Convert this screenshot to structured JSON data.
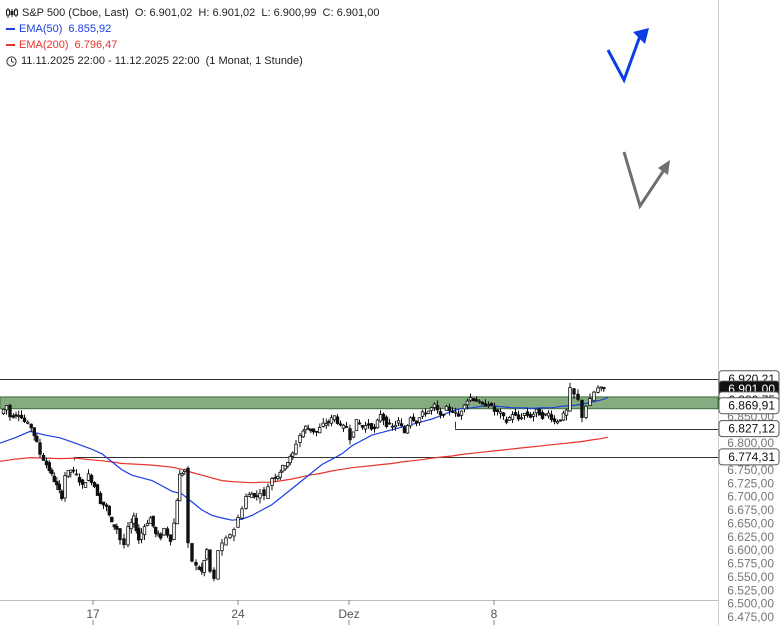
{
  "legend": {
    "title": "S&P 500 (Cboe, Last)",
    "ohlc": "O: 6.901,02  H: 6.901,02  L: 6.900,99  C: 6.901,00",
    "ema50_label": "EMA(50)",
    "ema50_value": "6.855,92",
    "ema200_label": "EMA(200)",
    "ema200_value": "6.796,47",
    "range": "11.11.2025 22:00 - 11.12.2025 22:00",
    "interval": "(1 Monat, 1 Stunde)",
    "icon": "candlestick-icon",
    "clock_icon": "clock-icon"
  },
  "colors": {
    "ema50": "#1a3fe0",
    "ema200": "#e8342a",
    "zone": "#6e9e6a",
    "up_arrow": "#0a3fe8",
    "down_arrow": "#707070"
  },
  "chart_data": {
    "type": "candlestick",
    "y_min": 6475,
    "y_max": 6937,
    "y_ticks": [
      6475,
      6500,
      6525,
      6550,
      6575,
      6600,
      6625,
      6650,
      6675,
      6700,
      6725,
      6750,
      6775,
      6800,
      6825,
      6850,
      6875,
      6900,
      6925
    ],
    "y_tick_labels": [
      "6.475,00",
      "6.500,00",
      "6.525,00",
      "6.550,00",
      "6.575,00",
      "6.600,00",
      "6.625,00",
      "6.650,00",
      "6.675,00",
      "6.700,00",
      "6.725,00",
      "6.750,00",
      "6.775,00",
      "6.800,00",
      "6.825,00",
      "6.850,00",
      "6.875,00",
      "6.900,00",
      "6.925,00"
    ],
    "x_ticks": [
      {
        "pos": 93,
        "label": "17"
      },
      {
        "pos": 238,
        "label": "24"
      },
      {
        "pos": 349,
        "label": "Dez"
      },
      {
        "pos": 494,
        "label": "8"
      }
    ],
    "levels": [
      {
        "value": 6920.21,
        "label": "6.920,21"
      },
      {
        "value": 6827.12,
        "label": "6.827,12"
      },
      {
        "value": 6774.31,
        "label": "6.774,31"
      }
    ],
    "current": {
      "value": 6901.0,
      "label": "6.901,00"
    },
    "zone": {
      "top": 6880.75,
      "bottom": 6869.91,
      "top_label": "6.880,75",
      "bottom_label": "6.869,91"
    },
    "close_path": [
      [
        2,
        6855
      ],
      [
        8,
        6870
      ],
      [
        12,
        6850
      ],
      [
        20,
        6855
      ],
      [
        26,
        6840
      ],
      [
        33,
        6830
      ],
      [
        38,
        6800
      ],
      [
        42,
        6780
      ],
      [
        48,
        6760
      ],
      [
        53,
        6740
      ],
      [
        58,
        6720
      ],
      [
        63,
        6700
      ],
      [
        67,
        6740
      ],
      [
        72,
        6750
      ],
      [
        78,
        6740
      ],
      [
        84,
        6720
      ],
      [
        90,
        6740
      ],
      [
        96,
        6720
      ],
      [
        102,
        6690
      ],
      [
        108,
        6680
      ],
      [
        113,
        6650
      ],
      [
        118,
        6640
      ],
      [
        122,
        6620
      ],
      [
        126,
        6610
      ],
      [
        130,
        6640
      ],
      [
        135,
        6660
      ],
      [
        140,
        6620
      ],
      [
        146,
        6645
      ],
      [
        152,
        6660
      ],
      [
        157,
        6630
      ],
      [
        162,
        6625
      ],
      [
        166,
        6640
      ],
      [
        172,
        6620
      ],
      [
        176,
        6650
      ],
      [
        181,
        6740
      ],
      [
        186,
        6750
      ],
      [
        190,
        6610
      ],
      [
        194,
        6580
      ],
      [
        198,
        6570
      ],
      [
        203,
        6560
      ],
      [
        208,
        6600
      ],
      [
        212,
        6560
      ],
      [
        216,
        6545
      ],
      [
        220,
        6600
      ],
      [
        224,
        6610
      ],
      [
        228,
        6620
      ],
      [
        232,
        6630
      ],
      [
        236,
        6640
      ],
      [
        240,
        6660
      ],
      [
        244,
        6680
      ],
      [
        248,
        6700
      ],
      [
        253,
        6705
      ],
      [
        258,
        6700
      ],
      [
        262,
        6710
      ],
      [
        266,
        6700
      ],
      [
        270,
        6720
      ],
      [
        274,
        6735
      ],
      [
        279,
        6740
      ],
      [
        284,
        6755
      ],
      [
        289,
        6765
      ],
      [
        294,
        6780
      ],
      [
        298,
        6800
      ],
      [
        302,
        6815
      ],
      [
        307,
        6830
      ],
      [
        312,
        6825
      ],
      [
        318,
        6820
      ],
      [
        325,
        6835
      ],
      [
        330,
        6840
      ],
      [
        336,
        6850
      ],
      [
        342,
        6830
      ],
      [
        348,
        6830
      ],
      [
        352,
        6810
      ],
      [
        358,
        6840
      ],
      [
        364,
        6830
      ],
      [
        370,
        6835
      ],
      [
        376,
        6825
      ],
      [
        382,
        6855
      ],
      [
        388,
        6835
      ],
      [
        394,
        6830
      ],
      [
        400,
        6840
      ],
      [
        406,
        6820
      ],
      [
        412,
        6850
      ],
      [
        418,
        6840
      ],
      [
        424,
        6855
      ],
      [
        430,
        6860
      ],
      [
        436,
        6870
      ],
      [
        442,
        6850
      ],
      [
        448,
        6865
      ],
      [
        454,
        6860
      ],
      [
        460,
        6850
      ],
      [
        466,
        6875
      ],
      [
        472,
        6885
      ],
      [
        478,
        6880
      ],
      [
        484,
        6870
      ],
      [
        490,
        6875
      ],
      [
        496,
        6860
      ],
      [
        502,
        6855
      ],
      [
        508,
        6840
      ],
      [
        514,
        6855
      ],
      [
        520,
        6845
      ],
      [
        526,
        6855
      ],
      [
        532,
        6850
      ],
      [
        538,
        6860
      ],
      [
        544,
        6850
      ],
      [
        550,
        6855
      ],
      [
        556,
        6840
      ],
      [
        562,
        6845
      ],
      [
        568,
        6860
      ],
      [
        572,
        6900
      ],
      [
        576,
        6890
      ],
      [
        580,
        6880
      ],
      [
        584,
        6850
      ],
      [
        588,
        6870
      ],
      [
        592,
        6880
      ],
      [
        596,
        6895
      ],
      [
        600,
        6902
      ],
      [
        605,
        6901
      ]
    ],
    "ema50": [
      [
        0,
        6800
      ],
      [
        15,
        6810
      ],
      [
        30,
        6822
      ],
      [
        45,
        6815
      ],
      [
        60,
        6810
      ],
      [
        75,
        6800
      ],
      [
        90,
        6790
      ],
      [
        102,
        6780
      ],
      [
        112,
        6765
      ],
      [
        122,
        6750
      ],
      [
        132,
        6740
      ],
      [
        142,
        6735
      ],
      [
        152,
        6730
      ],
      [
        162,
        6720
      ],
      [
        172,
        6710
      ],
      [
        182,
        6705
      ],
      [
        192,
        6690
      ],
      [
        202,
        6675
      ],
      [
        212,
        6665
      ],
      [
        222,
        6660
      ],
      [
        232,
        6656
      ],
      [
        242,
        6658
      ],
      [
        252,
        6665
      ],
      [
        262,
        6675
      ],
      [
        272,
        6685
      ],
      [
        282,
        6700
      ],
      [
        292,
        6715
      ],
      [
        302,
        6730
      ],
      [
        312,
        6745
      ],
      [
        322,
        6760
      ],
      [
        332,
        6770
      ],
      [
        342,
        6780
      ],
      [
        352,
        6795
      ],
      [
        362,
        6805
      ],
      [
        372,
        6815
      ],
      [
        382,
        6820
      ],
      [
        392,
        6825
      ],
      [
        402,
        6830
      ],
      [
        412,
        6835
      ],
      [
        422,
        6840
      ],
      [
        432,
        6845
      ],
      [
        442,
        6852
      ],
      [
        452,
        6860
      ],
      [
        462,
        6865
      ],
      [
        472,
        6866
      ],
      [
        482,
        6869
      ],
      [
        492,
        6870
      ],
      [
        502,
        6868
      ],
      [
        512,
        6866
      ],
      [
        522,
        6866
      ],
      [
        532,
        6865
      ],
      [
        542,
        6866
      ],
      [
        552,
        6866
      ],
      [
        562,
        6869
      ],
      [
        572,
        6870
      ],
      [
        582,
        6873
      ],
      [
        592,
        6877
      ],
      [
        600,
        6880
      ],
      [
        608,
        6885
      ]
    ],
    "ema200": [
      [
        0,
        6766
      ],
      [
        15,
        6770
      ],
      [
        30,
        6773
      ],
      [
        45,
        6772
      ],
      [
        60,
        6771
      ],
      [
        75,
        6772
      ],
      [
        90,
        6769
      ],
      [
        102,
        6767
      ],
      [
        112,
        6765
      ],
      [
        122,
        6762
      ],
      [
        132,
        6761
      ],
      [
        142,
        6760
      ],
      [
        152,
        6759
      ],
      [
        162,
        6757
      ],
      [
        172,
        6755
      ],
      [
        182,
        6751
      ],
      [
        192,
        6745
      ],
      [
        202,
        6740
      ],
      [
        212,
        6735
      ],
      [
        222,
        6730
      ],
      [
        232,
        6728
      ],
      [
        242,
        6727
      ],
      [
        252,
        6726
      ],
      [
        262,
        6727
      ],
      [
        272,
        6727
      ],
      [
        282,
        6730
      ],
      [
        292,
        6733
      ],
      [
        302,
        6737
      ],
      [
        312,
        6741
      ],
      [
        322,
        6744
      ],
      [
        332,
        6748
      ],
      [
        342,
        6751
      ],
      [
        352,
        6754
      ],
      [
        362,
        6756
      ],
      [
        372,
        6758
      ],
      [
        382,
        6760
      ],
      [
        392,
        6762
      ],
      [
        402,
        6765
      ],
      [
        412,
        6767
      ],
      [
        422,
        6769
      ],
      [
        432,
        6772
      ],
      [
        442,
        6774
      ],
      [
        452,
        6776
      ],
      [
        462,
        6779
      ],
      [
        472,
        6781
      ],
      [
        482,
        6783
      ],
      [
        492,
        6785
      ],
      [
        502,
        6787
      ],
      [
        512,
        6789
      ],
      [
        522,
        6791
      ],
      [
        532,
        6793
      ],
      [
        542,
        6795
      ],
      [
        552,
        6797
      ],
      [
        562,
        6799
      ],
      [
        572,
        6801
      ],
      [
        582,
        6803
      ],
      [
        592,
        6806
      ],
      [
        600,
        6808
      ],
      [
        608,
        6811
      ]
    ]
  }
}
